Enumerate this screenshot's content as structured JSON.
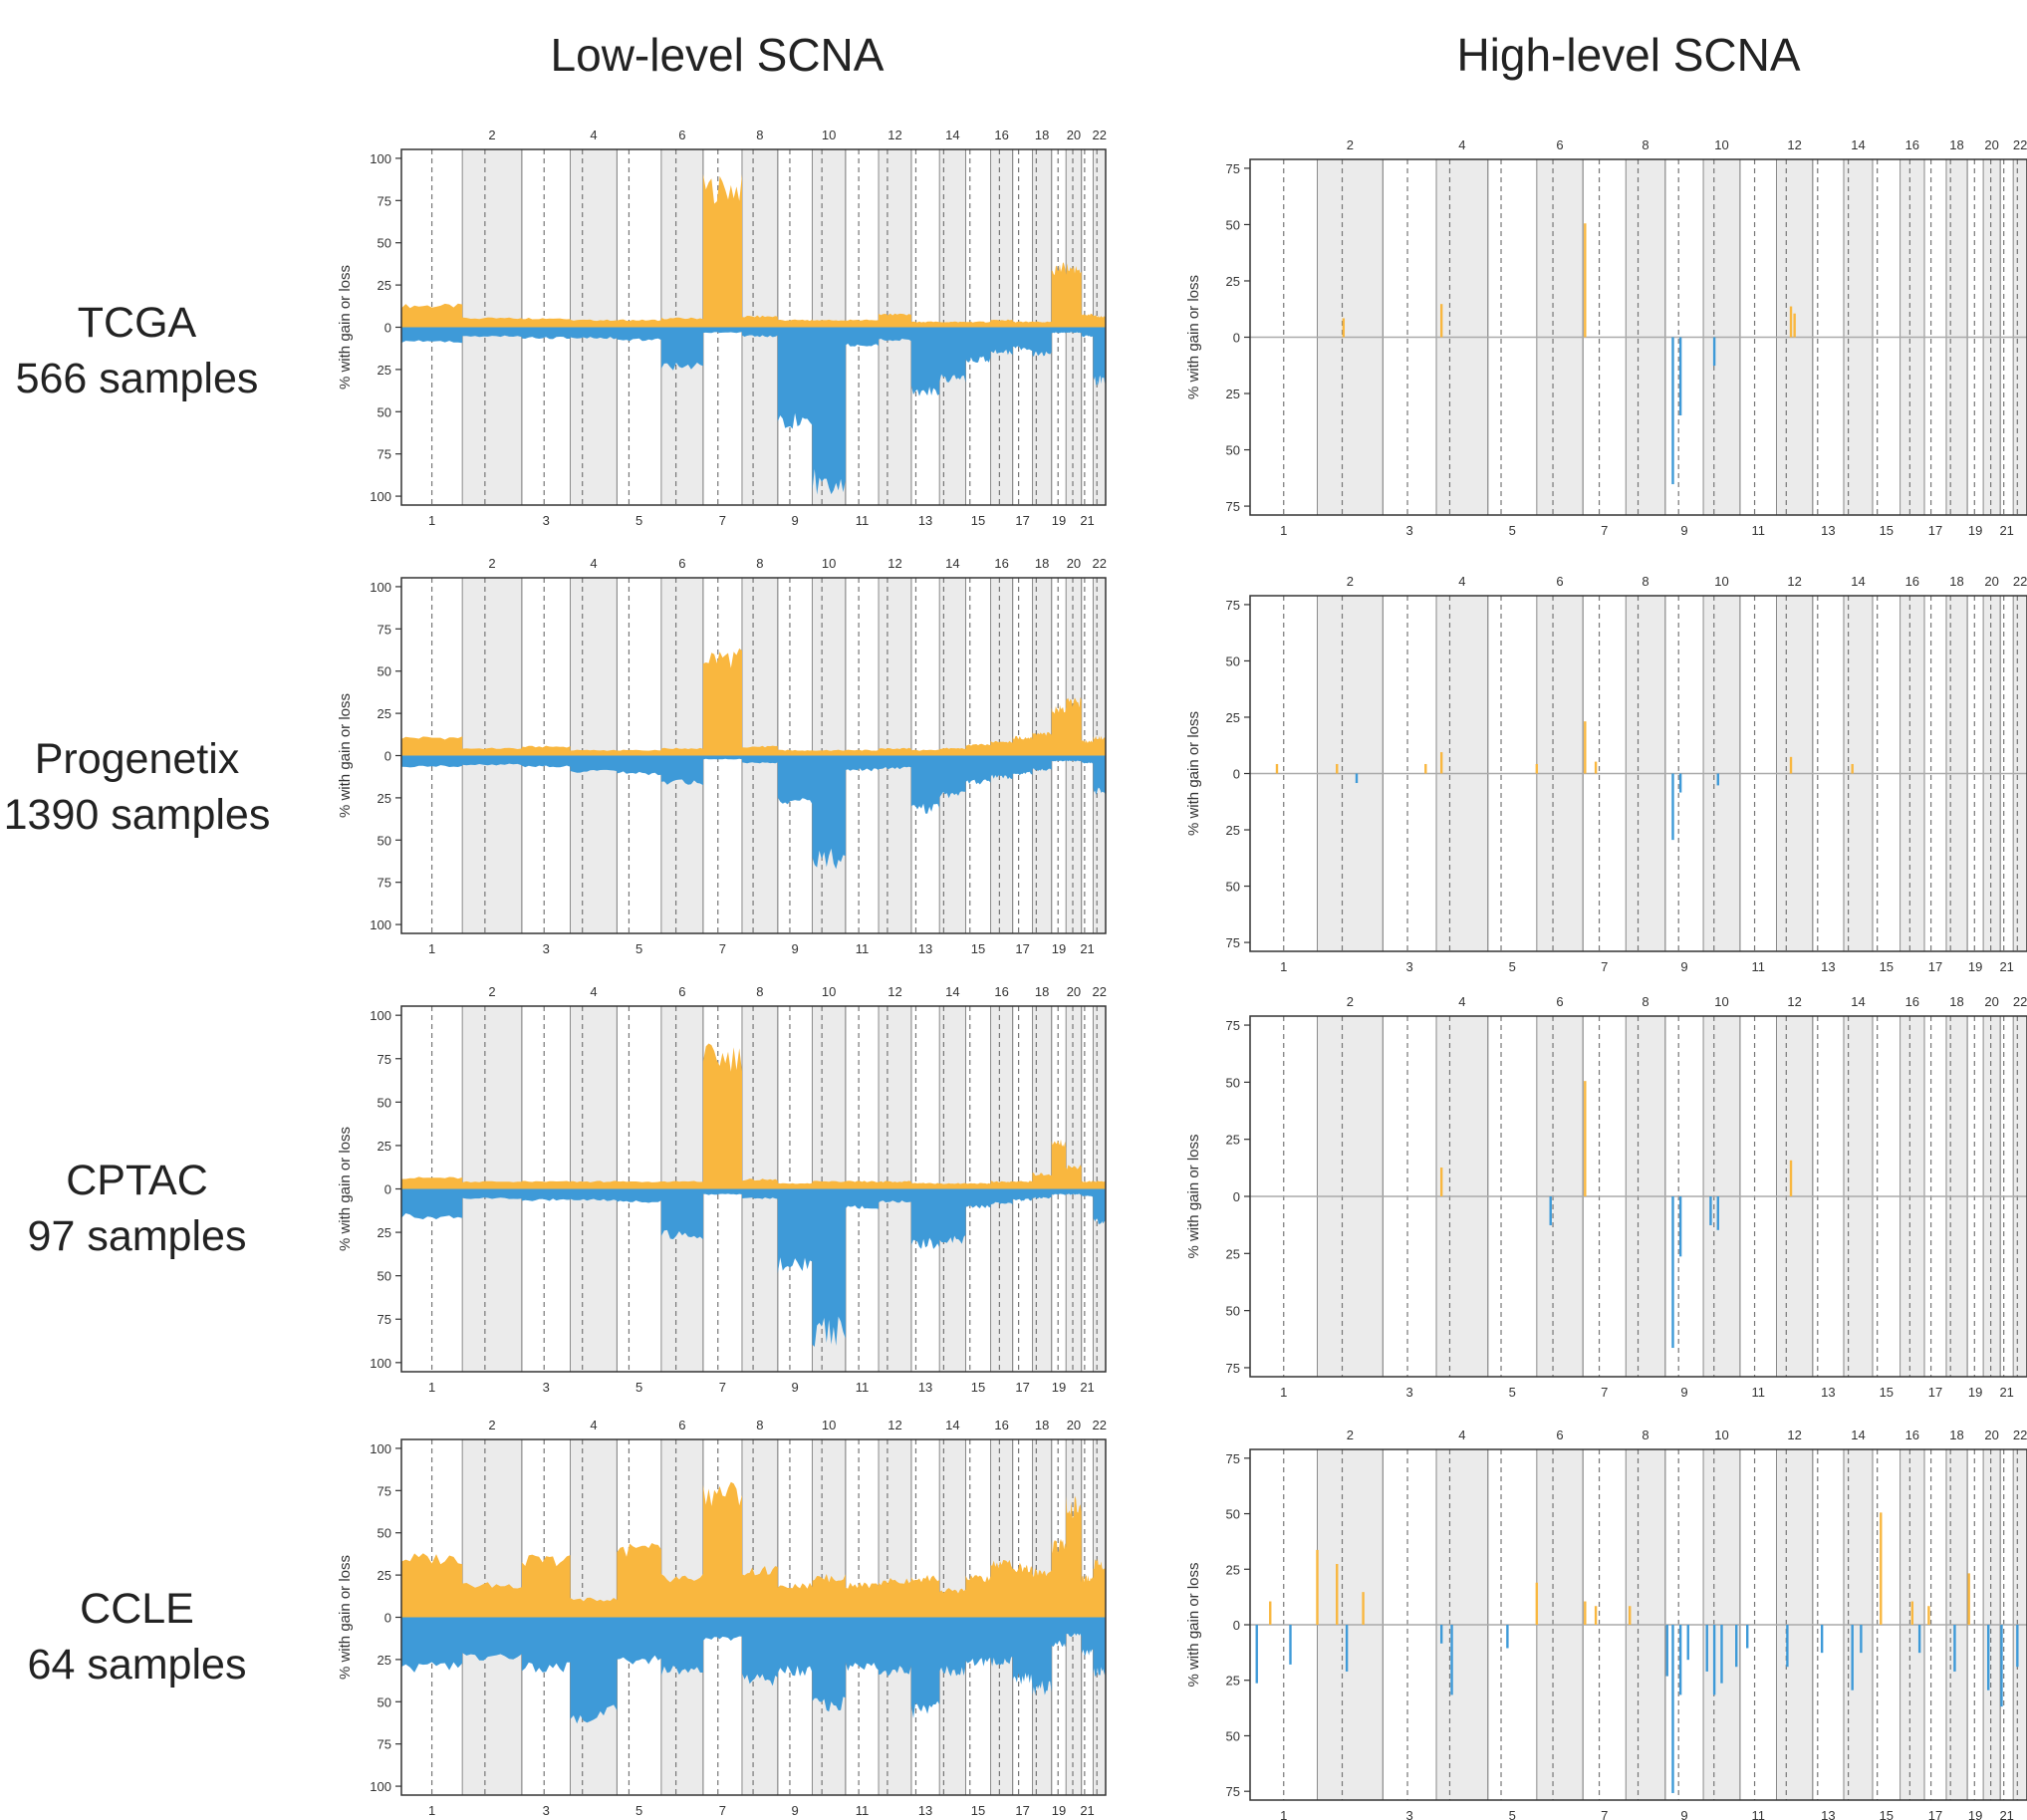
{
  "columns": [
    {
      "title": "Low-level SCNA"
    },
    {
      "title": "High-level SCNA"
    }
  ],
  "rows": [
    {
      "dataset": "TCGA",
      "samples": "566 samples"
    },
    {
      "dataset": "Progenetix",
      "samples": "1390 samples"
    },
    {
      "dataset": "CPTAC",
      "samples": "97 samples"
    },
    {
      "dataset": "CCLE",
      "samples": "64 samples"
    }
  ],
  "axis": {
    "ylabel": "% with gain or loss",
    "low_ticks": [
      "100",
      "75",
      "50",
      "25",
      "0",
      "25",
      "50",
      "75",
      "100"
    ],
    "high_ticks": [
      "75",
      "50",
      "25",
      "0",
      "25",
      "50",
      "75"
    ],
    "top_chrom_labels": [
      "2",
      "4",
      "6",
      "8",
      "10",
      "12",
      "14",
      "16",
      "18",
      "20",
      "22"
    ],
    "bottom_chrom_labels": [
      "1",
      "3",
      "5",
      "7",
      "9",
      "11",
      "13",
      "15",
      "17",
      "19",
      "21"
    ]
  },
  "colors": {
    "gain": "#F9B73F",
    "loss": "#3E9AD8",
    "shade": "#EBEBEB",
    "baseline": "#AAAAAA"
  },
  "chart_data": [
    {
      "type": "area",
      "dataset": "TCGA",
      "level": "low",
      "ylim": [
        -100,
        100
      ],
      "x": [
        "1",
        "2",
        "3",
        "4",
        "5",
        "6",
        "7",
        "8",
        "9",
        "10",
        "11",
        "12",
        "13",
        "14",
        "15",
        "16",
        "17",
        "18",
        "19",
        "20",
        "21",
        "22"
      ],
      "series": [
        {
          "name": "gain",
          "values": [
            12,
            5,
            5,
            4,
            4,
            5,
            78,
            6,
            4,
            4,
            4,
            7,
            3,
            3,
            3,
            4,
            3,
            3,
            33,
            33,
            7,
            6
          ]
        },
        {
          "name": "loss",
          "values": [
            -8,
            -5,
            -6,
            -6,
            -7,
            -22,
            -3,
            -5,
            -52,
            -85,
            -10,
            -7,
            -35,
            -28,
            -18,
            -14,
            -12,
            -15,
            -3,
            -3,
            -5,
            -30
          ]
        }
      ]
    },
    {
      "type": "area",
      "dataset": "Progenetix",
      "level": "low",
      "ylim": [
        -100,
        100
      ],
      "x": [
        "1",
        "2",
        "3",
        "4",
        "5",
        "6",
        "7",
        "8",
        "9",
        "10",
        "11",
        "12",
        "13",
        "14",
        "15",
        "16",
        "17",
        "18",
        "19",
        "20",
        "21",
        "22"
      ],
      "series": [
        {
          "name": "gain",
          "values": [
            10,
            4,
            5,
            3,
            3,
            4,
            55,
            5,
            3,
            3,
            3,
            4,
            3,
            4,
            6,
            8,
            10,
            12,
            26,
            30,
            8,
            10
          ]
        },
        {
          "name": "loss",
          "values": [
            -6,
            -5,
            -6,
            -9,
            -10,
            -15,
            -2,
            -4,
            -25,
            -58,
            -8,
            -7,
            -30,
            -22,
            -15,
            -12,
            -10,
            -8,
            -3,
            -3,
            -4,
            -20
          ]
        }
      ]
    },
    {
      "type": "area",
      "dataset": "CPTAC",
      "level": "low",
      "ylim": [
        -100,
        100
      ],
      "x": [
        "1",
        "2",
        "3",
        "4",
        "5",
        "6",
        "7",
        "8",
        "9",
        "10",
        "11",
        "12",
        "13",
        "14",
        "15",
        "16",
        "17",
        "18",
        "19",
        "20",
        "21",
        "22"
      ],
      "series": [
        {
          "name": "gain",
          "values": [
            6,
            4,
            4,
            4,
            4,
            4,
            72,
            5,
            3,
            4,
            4,
            4,
            3,
            3,
            3,
            4,
            4,
            8,
            25,
            12,
            4,
            4
          ]
        },
        {
          "name": "loss",
          "values": [
            -15,
            -5,
            -6,
            -6,
            -7,
            -25,
            -3,
            -5,
            -42,
            -78,
            -10,
            -7,
            -30,
            -28,
            -10,
            -8,
            -6,
            -5,
            -3,
            -3,
            -4,
            -18
          ]
        }
      ]
    },
    {
      "type": "area",
      "dataset": "CCLE",
      "level": "low",
      "ylim": [
        -100,
        100
      ],
      "x": [
        "1",
        "2",
        "3",
        "4",
        "5",
        "6",
        "7",
        "8",
        "9",
        "10",
        "11",
        "12",
        "13",
        "14",
        "15",
        "16",
        "17",
        "18",
        "19",
        "20",
        "21",
        "22"
      ],
      "series": [
        {
          "name": "gain",
          "values": [
            33,
            18,
            32,
            10,
            38,
            22,
            70,
            26,
            18,
            22,
            18,
            20,
            22,
            15,
            22,
            30,
            28,
            25,
            40,
            62,
            22,
            30
          ]
        },
        {
          "name": "loss",
          "values": [
            -28,
            -22,
            -28,
            -55,
            -24,
            -30,
            -12,
            -35,
            -30,
            -50,
            -28,
            -30,
            -52,
            -30,
            -25,
            -25,
            -35,
            -40,
            -15,
            -10,
            -20,
            -30
          ]
        }
      ]
    },
    {
      "type": "bar",
      "dataset": "TCGA",
      "level": "high",
      "ylim": [
        -75,
        75
      ],
      "x": [
        2.4,
        4.1,
        7.05,
        9.2,
        9.4,
        10.3,
        12.4,
        12.5
      ],
      "series": [
        {
          "name": "gain/loss",
          "values": [
            8,
            14,
            48,
            -62,
            -33,
            -12,
            13,
            10
          ]
        }
      ]
    },
    {
      "type": "bar",
      "dataset": "Progenetix",
      "level": "high",
      "ylim": [
        -75,
        75
      ],
      "x": [
        1.4,
        2.3,
        2.6,
        3.8,
        4.1,
        6.0,
        7.05,
        7.3,
        9.2,
        9.4,
        10.4,
        12.4,
        14.3
      ],
      "series": [
        {
          "name": "gain/loss",
          "values": [
            4,
            4,
            -4,
            4,
            9,
            4,
            22,
            5,
            -28,
            -8,
            -5,
            7,
            4
          ]
        }
      ]
    },
    {
      "type": "bar",
      "dataset": "CPTAC",
      "level": "high",
      "ylim": [
        -75,
        75
      ],
      "x": [
        4.1,
        6.3,
        7.05,
        9.2,
        9.4,
        10.2,
        10.4,
        12.4
      ],
      "series": [
        {
          "name": "gain/loss",
          "values": [
            12,
            -12,
            48,
            -63,
            -25,
            -12,
            -14,
            15
          ]
        }
      ]
    },
    {
      "type": "bar",
      "dataset": "CCLE",
      "level": "high",
      "ylim": [
        -75,
        75
      ],
      "x": [
        1.1,
        1.3,
        1.6,
        2.0,
        2.3,
        2.45,
        2.7,
        4.1,
        4.3,
        5.4,
        6.0,
        7.05,
        7.3,
        8.1,
        9.05,
        9.2,
        9.4,
        9.6,
        10.1,
        10.3,
        10.5,
        10.9,
        11.2,
        12.3,
        13.3,
        14.3,
        14.6,
        15.3,
        16.5,
        16.8,
        17.2,
        18.4,
        19.1,
        20.3,
        21.1,
        22.3
      ],
      "series": [
        {
          "name": "gain/loss",
          "values": [
            -25,
            10,
            -17,
            32,
            26,
            -20,
            14,
            -8,
            -30,
            -10,
            18,
            10,
            8,
            8,
            -22,
            -72,
            -30,
            -15,
            -20,
            -30,
            -25,
            -18,
            -10,
            -18,
            -12,
            -28,
            -12,
            48,
            10,
            -12,
            8,
            -20,
            22,
            -28,
            -35,
            -18
          ]
        }
      ]
    }
  ]
}
